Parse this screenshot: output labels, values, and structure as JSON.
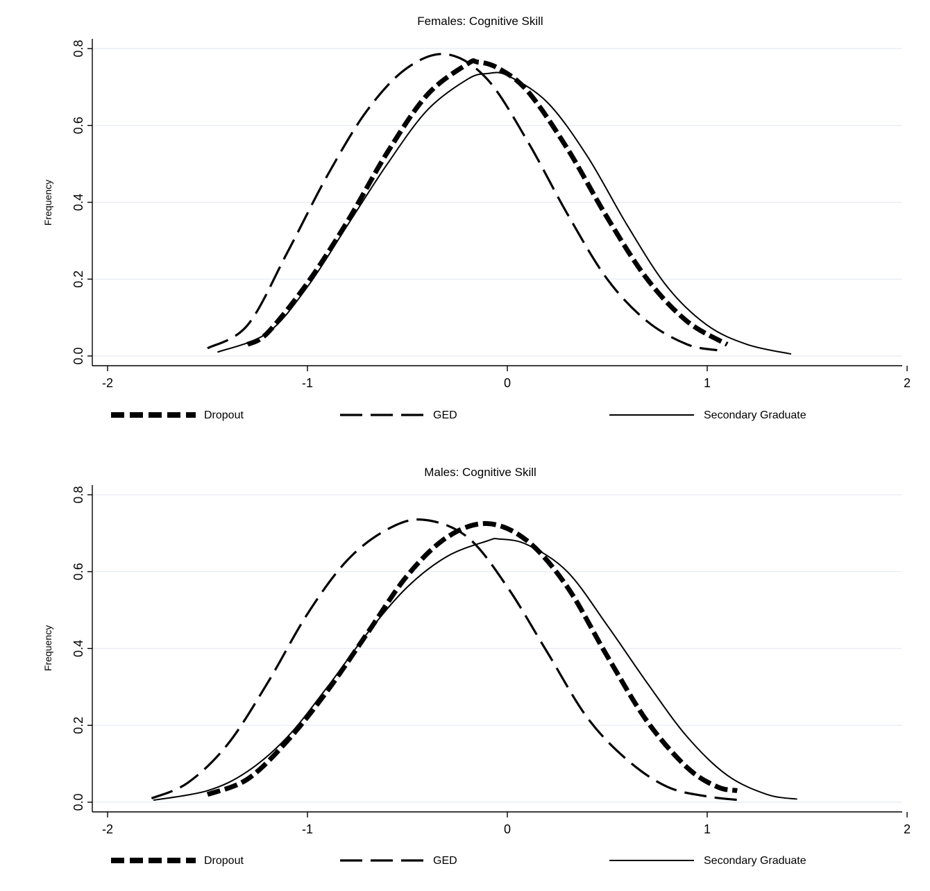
{
  "chart_data": [
    {
      "type": "line",
      "title": "Females: Cognitive Skill",
      "xlabel": "",
      "ylabel": "Frequency",
      "xlim": [
        -2,
        2
      ],
      "ylim": [
        0,
        0.8
      ],
      "xticks": [
        "-2",
        "-1",
        "0",
        "1",
        "2"
      ],
      "yticks": [
        "0.0",
        "0.2",
        "0.4",
        "0.6",
        "0.8"
      ],
      "grid": true,
      "legend_position": "bottom",
      "series": [
        {
          "name": "Dropout",
          "style": "thick-dotted",
          "x": [
            -1.3,
            -1.2,
            -1.0,
            -0.8,
            -0.6,
            -0.4,
            -0.2,
            -0.15,
            -0.05,
            0.1,
            0.3,
            0.5,
            0.7,
            0.9,
            1.1
          ],
          "y": [
            0.03,
            0.06,
            0.19,
            0.35,
            0.53,
            0.68,
            0.76,
            0.765,
            0.75,
            0.69,
            0.54,
            0.36,
            0.2,
            0.09,
            0.03
          ]
        },
        {
          "name": "GED",
          "style": "long-dash",
          "x": [
            -1.5,
            -1.3,
            -1.1,
            -0.9,
            -0.7,
            -0.5,
            -0.3,
            -0.1,
            0.1,
            0.3,
            0.5,
            0.7,
            0.9,
            1.05
          ],
          "y": [
            0.02,
            0.08,
            0.27,
            0.47,
            0.64,
            0.75,
            0.785,
            0.72,
            0.56,
            0.37,
            0.2,
            0.09,
            0.03,
            0.015
          ]
        },
        {
          "name": "Secondary Graduate",
          "style": "solid",
          "x": [
            -1.45,
            -1.2,
            -1.0,
            -0.8,
            -0.6,
            -0.4,
            -0.2,
            -0.1,
            0.0,
            0.2,
            0.4,
            0.6,
            0.8,
            1.0,
            1.2,
            1.42
          ],
          "y": [
            0.01,
            0.06,
            0.18,
            0.34,
            0.5,
            0.64,
            0.72,
            0.735,
            0.73,
            0.66,
            0.52,
            0.34,
            0.18,
            0.08,
            0.03,
            0.005
          ]
        }
      ]
    },
    {
      "type": "line",
      "title": "Males: Cognitive Skill",
      "xlabel": "",
      "ylabel": "Frequency",
      "xlim": [
        -2,
        2
      ],
      "ylim": [
        0,
        0.8
      ],
      "xticks": [
        "-2",
        "-1",
        "0",
        "1",
        "2"
      ],
      "yticks": [
        "0.0",
        "0.2",
        "0.4",
        "0.6",
        "0.8"
      ],
      "grid": true,
      "legend_position": "bottom",
      "series": [
        {
          "name": "Dropout",
          "style": "thick-dotted",
          "x": [
            -1.5,
            -1.3,
            -1.1,
            -0.9,
            -0.7,
            -0.5,
            -0.3,
            -0.1,
            0.1,
            0.3,
            0.5,
            0.7,
            0.9,
            1.05,
            1.15
          ],
          "y": [
            0.02,
            0.06,
            0.16,
            0.29,
            0.44,
            0.59,
            0.69,
            0.725,
            0.68,
            0.56,
            0.38,
            0.21,
            0.09,
            0.04,
            0.03
          ]
        },
        {
          "name": "GED",
          "style": "long-dash",
          "x": [
            -1.78,
            -1.6,
            -1.4,
            -1.2,
            -1.0,
            -0.8,
            -0.6,
            -0.42,
            -0.2,
            0.0,
            0.2,
            0.4,
            0.6,
            0.8,
            1.0,
            1.17
          ],
          "y": [
            0.01,
            0.05,
            0.15,
            0.31,
            0.49,
            0.63,
            0.71,
            0.735,
            0.69,
            0.56,
            0.39,
            0.22,
            0.11,
            0.04,
            0.015,
            0.005
          ]
        },
        {
          "name": "Secondary Graduate",
          "style": "solid",
          "x": [
            -1.77,
            -1.5,
            -1.3,
            -1.1,
            -0.9,
            -0.7,
            -0.5,
            -0.3,
            -0.1,
            -0.04,
            0.1,
            0.3,
            0.5,
            0.7,
            0.9,
            1.1,
            1.3,
            1.45
          ],
          "y": [
            0.005,
            0.03,
            0.08,
            0.17,
            0.3,
            0.44,
            0.56,
            0.64,
            0.68,
            0.685,
            0.67,
            0.6,
            0.46,
            0.31,
            0.17,
            0.07,
            0.02,
            0.008
          ]
        }
      ]
    }
  ]
}
